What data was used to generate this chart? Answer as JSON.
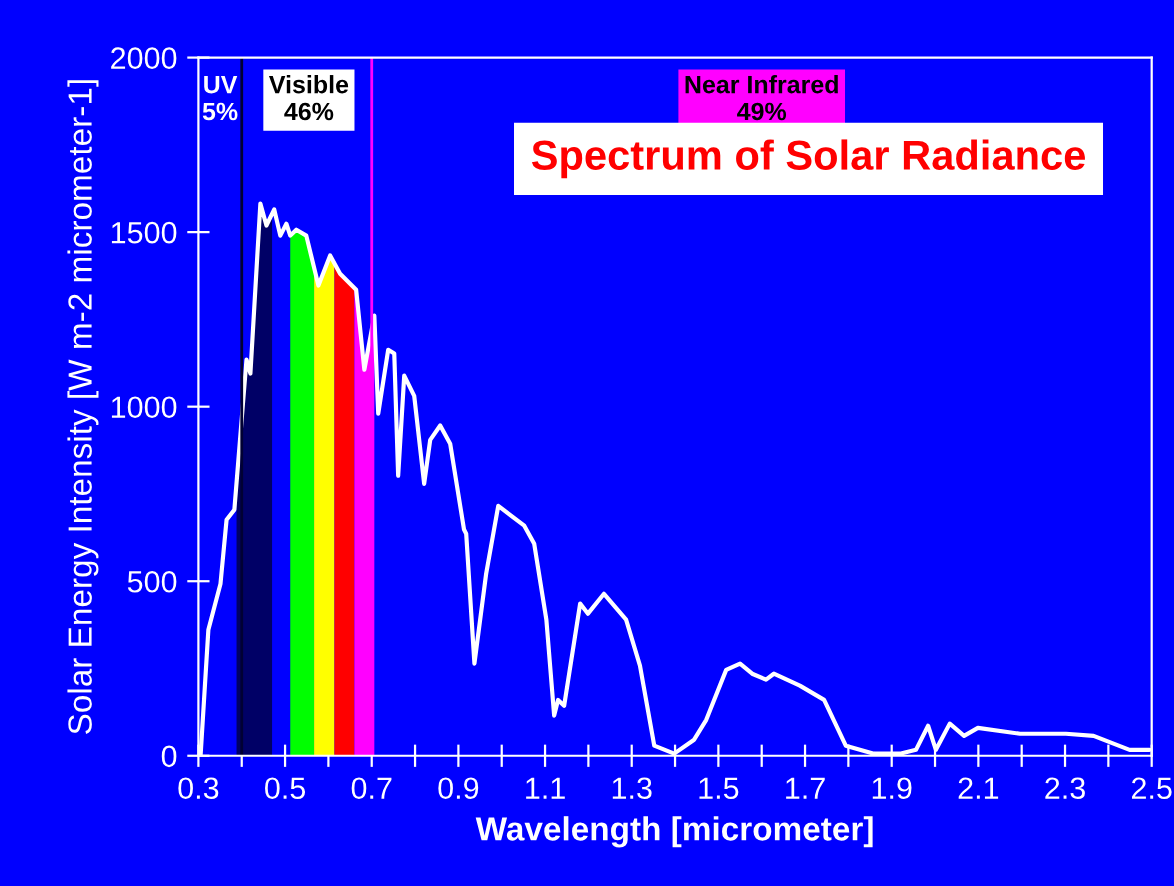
{
  "chart_data": {
    "type": "line",
    "title": "Spectrum of Solar Radiance",
    "xlabel": "Wavelength [micrometer]",
    "ylabel": "Solar Energy Intensity [W m-2 micrometer-1]",
    "xlim": [
      0.3,
      2.5
    ],
    "ylim": [
      0,
      2000
    ],
    "xticks": [
      0.3,
      {
        "value": 0.4,
        "label": null
      },
      0.5,
      {
        "value": 0.6,
        "label": null
      },
      0.7,
      {
        "value": 0.8,
        "label": null
      },
      0.9,
      {
        "value": 1.0,
        "label": null
      },
      1.1,
      {
        "value": 1.2,
        "label": null
      },
      1.3,
      {
        "value": 1.4,
        "label": null
      },
      1.5,
      {
        "value": 1.6,
        "label": null
      },
      1.7,
      {
        "value": 1.8,
        "label": null
      },
      1.9,
      {
        "value": 2.0,
        "label": null
      },
      2.1,
      {
        "value": 2.2,
        "label": null
      },
      2.3,
      {
        "value": 2.4,
        "label": null
      },
      2.5
    ],
    "yticks": [
      0,
      500,
      1000,
      1500,
      2000
    ],
    "grid": false,
    "legend": false,
    "marker": "none",
    "line_style": "solid",
    "series": [
      {
        "type": "area",
        "color": "#000066",
        "x": [
          0.388,
          0.411,
          0.42,
          0.443,
          0.457,
          0.47
        ],
        "values": [
          720,
          1135,
          1095,
          1582,
          1519,
          1540
        ]
      },
      {
        "type": "area",
        "color": "#00ff00",
        "x": [
          0.512,
          0.526,
          0.549,
          0.567
        ],
        "values": [
          1490,
          1507,
          1490,
          1400
        ]
      },
      {
        "type": "area",
        "color": "#ffff00",
        "x": [
          0.567,
          0.577,
          0.604,
          0.614
        ],
        "values": [
          1400,
          1347,
          1433,
          1410
        ]
      },
      {
        "type": "area",
        "color": "#ff0000",
        "x": [
          0.614,
          0.627,
          0.66
        ],
        "values": [
          1410,
          1381,
          1340
        ]
      },
      {
        "type": "area",
        "color": "#ff00ff",
        "x": [
          0.66,
          0.664,
          0.683,
          0.706
        ],
        "values": [
          1340,
          1335,
          1106,
          1261
        ]
      },
      {
        "color": "#ffffff",
        "x": [
          0.305,
          0.323,
          0.351,
          0.365,
          0.383,
          0.411,
          0.42,
          0.443,
          0.457,
          0.475,
          0.489,
          0.503,
          0.512,
          0.526,
          0.549,
          0.577,
          0.604,
          0.627,
          0.664,
          0.683,
          0.706,
          0.715,
          0.738,
          0.752,
          0.761,
          0.775,
          0.798,
          0.821,
          0.835,
          0.858,
          0.881,
          0.913,
          0.918,
          0.937,
          0.964,
          0.992,
          1.052,
          1.075,
          1.103,
          1.121,
          1.13,
          1.144,
          1.181,
          1.199,
          1.236,
          1.287,
          1.319,
          1.352,
          1.398,
          1.444,
          1.472,
          1.518,
          1.55,
          1.578,
          1.61,
          1.628,
          1.688,
          1.744,
          1.794,
          1.859,
          1.919,
          1.956,
          1.984,
          2.002,
          2.034,
          2.067,
          2.099,
          2.196,
          2.302,
          2.366,
          2.449,
          2.495
        ],
        "values": [
          0,
          361,
          493,
          676,
          705,
          1135,
          1095,
          1582,
          1519,
          1565,
          1490,
          1524,
          1490,
          1507,
          1490,
          1347,
          1433,
          1381,
          1335,
          1106,
          1261,
          980,
          1163,
          1152,
          802,
          1089,
          1031,
          779,
          905,
          946,
          894,
          648,
          636,
          264,
          521,
          716,
          659,
          607,
          390,
          115,
          160,
          143,
          436,
          407,
          464,
          390,
          258,
          29,
          6,
          46,
          103,
          246,
          264,
          235,
          218,
          235,
          201,
          160,
          29,
          6,
          6,
          17,
          86,
          17,
          92,
          57,
          80,
          63,
          63,
          57,
          17,
          17
        ]
      }
    ],
    "ref_lines": [
      {
        "axis": "x",
        "value": 0.4,
        "color": "#000033"
      },
      {
        "axis": "x",
        "value": 0.7,
        "color": "#ff00ff"
      }
    ],
    "annotations": [
      "UV\n5%",
      "Visible\n46%",
      "Near Infrared\n49%"
    ]
  }
}
